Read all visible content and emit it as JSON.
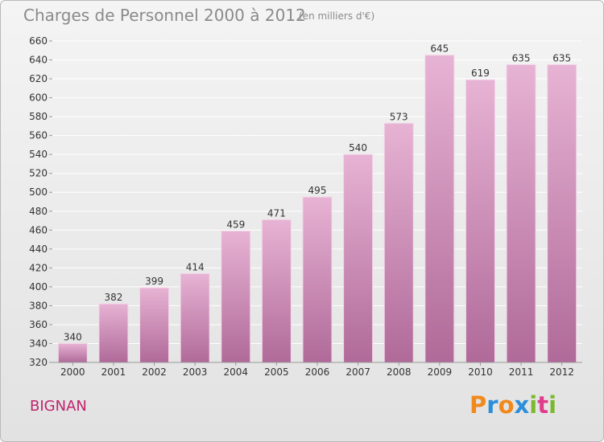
{
  "header": {
    "title": "Charges de Personnel 2000 à 2012",
    "subtitle": "(en milliers d'€)"
  },
  "footer": {
    "city": "BIGNAN",
    "logo": {
      "text": "Proxiti",
      "letters": [
        "P",
        "r",
        "o",
        "x",
        "i",
        "t",
        "i"
      ],
      "letter_colors": [
        "#f08a1c",
        "#2e8fd8",
        "#f08a1c",
        "#2e8fd8",
        "#7cb82f",
        "#e03c8c",
        "#7cb82f"
      ]
    }
  },
  "colors": {
    "bar_top": "#e7b3d4",
    "bar_bottom": "#b06a99",
    "bar_edge": "#f3d6e8",
    "grid": "#ffffff",
    "axis_text": "#333333"
  },
  "chart_data": {
    "type": "bar",
    "title": "Charges de Personnel 2000 à 2012",
    "subtitle": "(en milliers d'€)",
    "xlabel": "",
    "ylabel": "",
    "categories": [
      "2000",
      "2001",
      "2002",
      "2003",
      "2004",
      "2005",
      "2006",
      "2007",
      "2008",
      "2009",
      "2010",
      "2011",
      "2012"
    ],
    "values": [
      340,
      382,
      399,
      414,
      459,
      471,
      495,
      540,
      573,
      645,
      619,
      635,
      635
    ],
    "ylim": [
      320,
      660
    ],
    "yticks": [
      320,
      340,
      360,
      380,
      400,
      420,
      440,
      460,
      480,
      500,
      520,
      540,
      560,
      580,
      600,
      620,
      640,
      660
    ],
    "grid": true,
    "data_labels": true
  }
}
